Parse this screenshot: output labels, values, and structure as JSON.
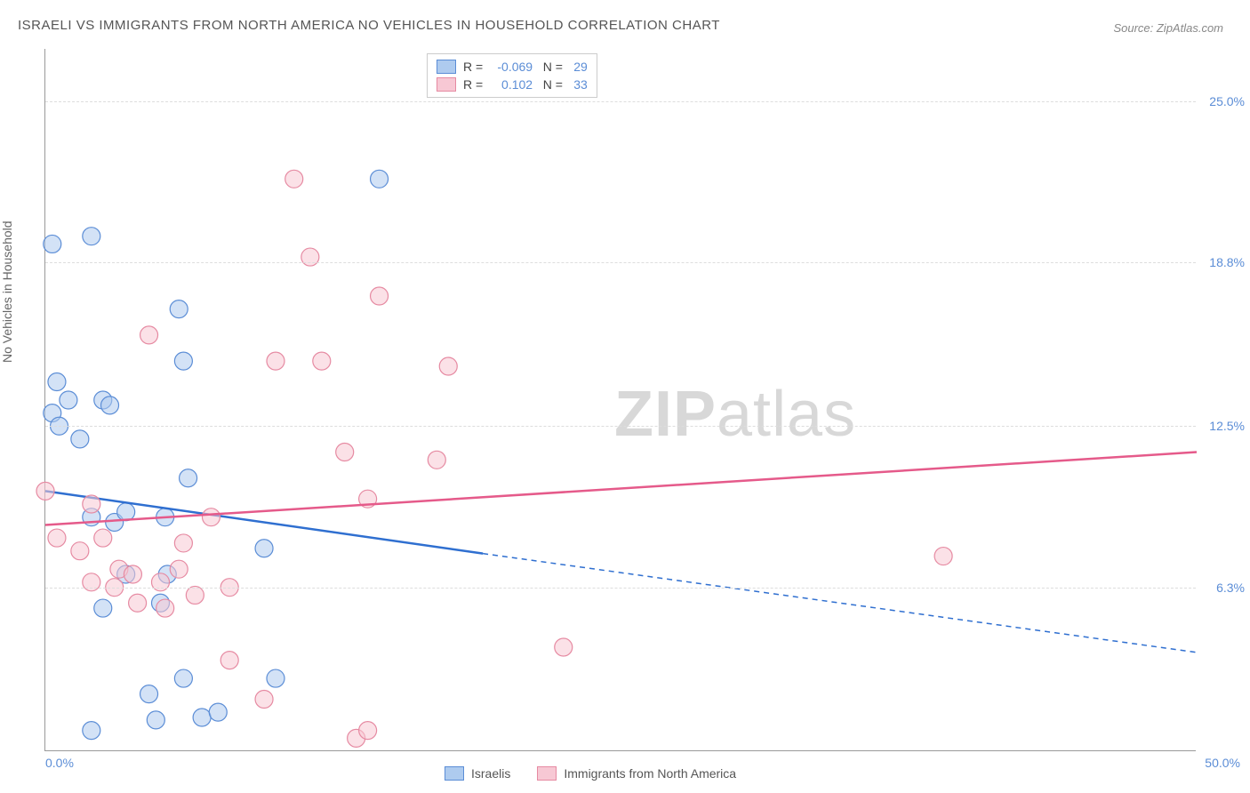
{
  "title": "ISRAELI VS IMMIGRANTS FROM NORTH AMERICA NO VEHICLES IN HOUSEHOLD CORRELATION CHART",
  "source": "Source: ZipAtlas.com",
  "ylabel": "No Vehicles in Household",
  "watermark": {
    "bold": "ZIP",
    "rest": "atlas"
  },
  "colors": {
    "blue_stroke": "#5b8dd6",
    "blue_fill": "#aecbef",
    "pink_stroke": "#e68aa2",
    "pink_fill": "#f7c8d4",
    "blue_line": "#2f6fd0",
    "pink_line": "#e55a8a",
    "grid": "#dddddd",
    "text": "#555555",
    "tick": "#5b8dd6"
  },
  "chart": {
    "type": "scatter",
    "xlim": [
      0,
      50
    ],
    "ylim": [
      0,
      27
    ],
    "xtick_labels": {
      "left": "0.0%",
      "right": "50.0%"
    },
    "ytick_labels": [
      {
        "val": 25.0,
        "label": "25.0%"
      },
      {
        "val": 18.8,
        "label": "18.8%"
      },
      {
        "val": 12.5,
        "label": "12.5%"
      },
      {
        "val": 6.3,
        "label": "6.3%"
      }
    ],
    "marker_radius": 10,
    "marker_opacity": 0.55,
    "line_width": 2.5,
    "series": [
      {
        "name": "Israelis",
        "color_key": "blue",
        "R": "-0.069",
        "N": "29",
        "points": [
          [
            0.3,
            19.5
          ],
          [
            2.0,
            19.8
          ],
          [
            0.5,
            14.2
          ],
          [
            0.3,
            13.0
          ],
          [
            1.0,
            13.5
          ],
          [
            2.5,
            13.5
          ],
          [
            1.5,
            12.0
          ],
          [
            5.8,
            17.0
          ],
          [
            6.0,
            15.0
          ],
          [
            6.2,
            10.5
          ],
          [
            2.0,
            9.0
          ],
          [
            3.0,
            8.8
          ],
          [
            3.5,
            6.8
          ],
          [
            5.3,
            6.8
          ],
          [
            5.0,
            5.7
          ],
          [
            2.5,
            5.5
          ],
          [
            2.0,
            0.8
          ],
          [
            4.5,
            2.2
          ],
          [
            4.8,
            1.2
          ],
          [
            6.0,
            2.8
          ],
          [
            6.8,
            1.3
          ],
          [
            7.5,
            1.5
          ],
          [
            9.5,
            7.8
          ],
          [
            10.0,
            2.8
          ],
          [
            3.5,
            9.2
          ],
          [
            14.5,
            22.0
          ],
          [
            5.2,
            9.0
          ],
          [
            0.6,
            12.5
          ],
          [
            2.8,
            13.3
          ]
        ],
        "trend": {
          "x1": 0,
          "y1": 10.0,
          "x2_solid": 19,
          "y2_solid": 7.6,
          "x2_dash": 50,
          "y2_dash": 3.8
        }
      },
      {
        "name": "Immigrants from North America",
        "color_key": "pink",
        "R": "0.102",
        "N": "33",
        "points": [
          [
            0.0,
            10.0
          ],
          [
            0.5,
            8.2
          ],
          [
            1.5,
            7.7
          ],
          [
            2.5,
            8.2
          ],
          [
            2.0,
            6.5
          ],
          [
            3.0,
            6.3
          ],
          [
            3.2,
            7.0
          ],
          [
            4.0,
            5.7
          ],
          [
            3.8,
            6.8
          ],
          [
            5.0,
            6.5
          ],
          [
            5.2,
            5.5
          ],
          [
            6.0,
            8.0
          ],
          [
            7.2,
            9.0
          ],
          [
            8.0,
            6.3
          ],
          [
            8.0,
            3.5
          ],
          [
            9.5,
            2.0
          ],
          [
            10.0,
            15.0
          ],
          [
            10.8,
            22.0
          ],
          [
            11.5,
            19.0
          ],
          [
            12.0,
            15.0
          ],
          [
            13.0,
            11.5
          ],
          [
            14.0,
            9.7
          ],
          [
            14.5,
            17.5
          ],
          [
            17.0,
            11.2
          ],
          [
            13.5,
            0.5
          ],
          [
            14.0,
            0.8
          ],
          [
            17.5,
            14.8
          ],
          [
            22.5,
            4.0
          ],
          [
            4.5,
            16.0
          ],
          [
            2.0,
            9.5
          ],
          [
            5.8,
            7.0
          ],
          [
            39.0,
            7.5
          ],
          [
            6.5,
            6.0
          ]
        ],
        "trend": {
          "x1": 0,
          "y1": 8.7,
          "x2_solid": 50,
          "y2_solid": 11.5
        }
      }
    ]
  },
  "legend_bottom": [
    {
      "label": "Israelis",
      "color_key": "blue"
    },
    {
      "label": "Immigrants from North America",
      "color_key": "pink"
    }
  ]
}
